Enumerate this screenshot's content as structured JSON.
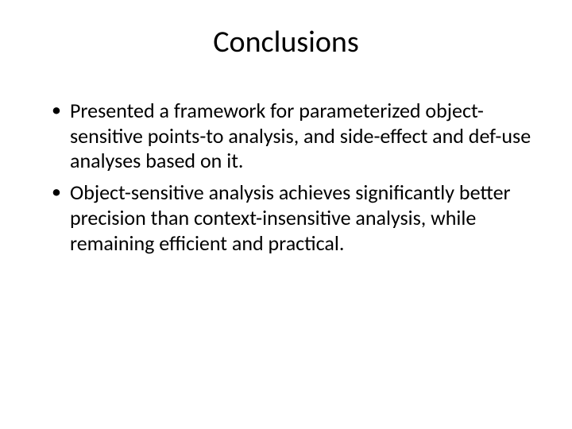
{
  "slide": {
    "title": "Conclusions",
    "bullets": [
      "Presented a framework for parameterized object-sensitive points-to analysis, and side-effect and def-use analyses based on it.",
      "Object-sensitive analysis achieves significantly better precision than context-insensitive analysis, while remaining efficient and practical."
    ],
    "background_color": "#ffffff",
    "text_color": "#000000",
    "title_fontsize": 38,
    "body_fontsize": 26,
    "font_family": "Calibri"
  }
}
